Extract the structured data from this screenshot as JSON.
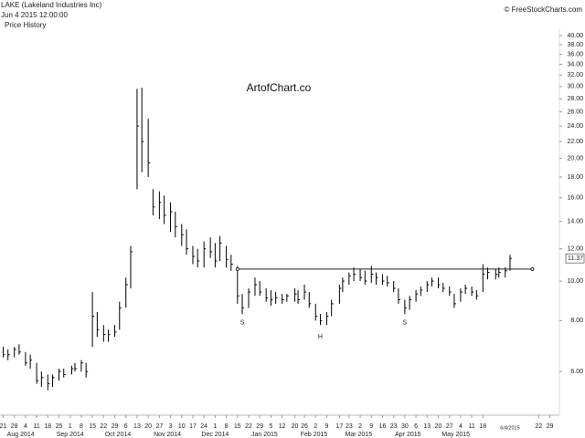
{
  "header": {
    "symbol": "LAKE (Lakeland Industries Inc)",
    "datetime": "Jun 4 2015 12:00:00",
    "panel": "Price History",
    "source": "© FreeStockCharts.com",
    "watermark": "ArtofChart.co"
  },
  "chart_data": {
    "type": "ohlc",
    "log_scale": true,
    "color": "#000000",
    "x": [
      "2014-07-21",
      "2014-07-24",
      "2014-07-28",
      "2014-07-31",
      "2014-08-04",
      "2014-08-07",
      "2014-08-11",
      "2014-08-14",
      "2014-08-18",
      "2014-08-21",
      "2014-08-25",
      "2014-08-28",
      "2014-09-02",
      "2014-09-04",
      "2014-09-08",
      "2014-09-11",
      "2014-09-15",
      "2014-09-18",
      "2014-09-22",
      "2014-09-25",
      "2014-09-29",
      "2014-10-02",
      "2014-10-06",
      "2014-10-09",
      "2014-10-13",
      "2014-10-16",
      "2014-10-20",
      "2014-10-23",
      "2014-10-27",
      "2014-10-30",
      "2014-11-03",
      "2014-11-06",
      "2014-11-10",
      "2014-11-13",
      "2014-11-17",
      "2014-11-20",
      "2014-11-24",
      "2014-11-28",
      "2014-12-01",
      "2014-12-04",
      "2014-12-08",
      "2014-12-11",
      "2014-12-15",
      "2014-12-18",
      "2014-12-22",
      "2014-12-26",
      "2014-12-29",
      "2015-01-02",
      "2015-01-05",
      "2015-01-08",
      "2015-01-12",
      "2015-01-15",
      "2015-01-20",
      "2015-01-22",
      "2015-01-26",
      "2015-01-29",
      "2015-02-02",
      "2015-02-05",
      "2015-02-09",
      "2015-02-12",
      "2015-02-17",
      "2015-02-19",
      "2015-02-23",
      "2015-02-26",
      "2015-03-02",
      "2015-03-05",
      "2015-03-09",
      "2015-03-12",
      "2015-03-16",
      "2015-03-19",
      "2015-03-23",
      "2015-03-26",
      "2015-03-30",
      "2015-04-02",
      "2015-04-06",
      "2015-04-09",
      "2015-04-13",
      "2015-04-16",
      "2015-04-20",
      "2015-04-23",
      "2015-04-27",
      "2015-04-30",
      "2015-05-04",
      "2015-05-07",
      "2015-05-11",
      "2015-05-14",
      "2015-05-18",
      "2015-05-21",
      "2015-05-26",
      "2015-05-28",
      "2015-06-01",
      "2015-06-04"
    ],
    "high": [
      6.9,
      6.8,
      6.9,
      7.0,
      6.7,
      6.6,
      6.3,
      6.0,
      5.9,
      5.9,
      6.1,
      6.1,
      6.2,
      6.3,
      6.4,
      6.3,
      9.4,
      8.4,
      7.8,
      7.6,
      7.8,
      8.9,
      10.2,
      12.2,
      29.6,
      29.8,
      25.0,
      16.8,
      16.6,
      16.2,
      15.6,
      14.8,
      13.8,
      13.4,
      12.2,
      12.0,
      12.5,
      12.8,
      12.4,
      12.9,
      12.2,
      11.6,
      10.9,
      9.3,
      9.6,
      10.2,
      10.0,
      9.6,
      9.5,
      9.4,
      9.3,
      9.3,
      9.6,
      9.5,
      9.8,
      9.4,
      8.8,
      8.3,
      8.4,
      9.0,
      9.8,
      10.2,
      10.5,
      10.8,
      10.7,
      10.6,
      10.9,
      10.5,
      10.4,
      10.3,
      10.0,
      9.6,
      9.0,
      9.2,
      9.5,
      9.7,
      10.0,
      10.2,
      10.2,
      9.9,
      9.7,
      9.3,
      9.6,
      9.8,
      9.7,
      9.5,
      11.0,
      10.8,
      10.7,
      10.8,
      10.8,
      11.6
    ],
    "low": [
      6.5,
      6.4,
      6.5,
      6.6,
      6.2,
      6.1,
      5.6,
      5.5,
      5.4,
      5.5,
      5.7,
      5.8,
      5.9,
      6.0,
      6.0,
      5.8,
      6.9,
      7.3,
      7.1,
      7.1,
      7.3,
      7.6,
      8.6,
      9.6,
      16.8,
      18.5,
      18.0,
      14.5,
      14.2,
      13.8,
      13.2,
      12.8,
      12.2,
      11.6,
      11.0,
      10.8,
      10.8,
      11.4,
      10.8,
      11.2,
      10.8,
      10.6,
      8.8,
      8.3,
      8.6,
      9.2,
      9.2,
      8.9,
      8.7,
      8.8,
      8.8,
      8.9,
      8.9,
      8.8,
      9.0,
      8.6,
      8.0,
      7.8,
      7.8,
      8.2,
      8.8,
      9.4,
      9.8,
      10.0,
      10.0,
      9.8,
      9.9,
      9.8,
      9.8,
      9.7,
      9.4,
      8.8,
      8.3,
      8.5,
      8.9,
      9.2,
      9.4,
      9.7,
      9.6,
      9.4,
      9.2,
      8.6,
      8.9,
      9.3,
      9.2,
      9.0,
      9.4,
      10.1,
      10.1,
      10.2,
      10.2,
      10.6
    ],
    "close": [
      6.6,
      6.6,
      6.8,
      6.7,
      6.3,
      6.4,
      5.7,
      5.8,
      5.6,
      5.8,
      6.0,
      5.9,
      6.1,
      6.1,
      6.3,
      6.0,
      8.2,
      7.6,
      7.4,
      7.4,
      7.5,
      8.6,
      9.8,
      11.8,
      24.0,
      22.0,
      19.5,
      15.2,
      15.6,
      14.5,
      14.8,
      13.6,
      13.0,
      12.0,
      11.5,
      11.2,
      12.0,
      11.8,
      11.2,
      12.4,
      11.3,
      11.0,
      9.2,
      8.6,
      9.4,
      9.8,
      9.4,
      9.1,
      9.0,
      9.1,
      9.0,
      9.2,
      9.3,
      9.0,
      9.4,
      8.8,
      8.2,
      8.0,
      8.2,
      8.8,
      9.6,
      10.0,
      10.3,
      10.4,
      10.2,
      10.0,
      10.4,
      10.2,
      10.0,
      9.9,
      9.6,
      9.0,
      8.6,
      9.0,
      9.3,
      9.5,
      9.8,
      10.0,
      9.8,
      9.6,
      9.4,
      8.8,
      9.4,
      9.6,
      9.4,
      9.2,
      10.4,
      10.5,
      10.4,
      10.5,
      10.6,
      11.37
    ],
    "xlim": [
      "2014-07-19",
      "2015-07-05"
    ],
    "xticks": [
      {
        "value": "2014-07-21",
        "label": "21"
      },
      {
        "value": "2014-07-28",
        "label": "28"
      },
      {
        "value": "2014-08-04",
        "label": "4"
      },
      {
        "value": "2014-08-11",
        "label": "11"
      },
      {
        "value": "2014-08-18",
        "label": "18"
      },
      {
        "value": "2014-08-25",
        "label": "25"
      },
      {
        "value": "2014-09-01",
        "label": "1"
      },
      {
        "value": "2014-09-08",
        "label": "8"
      },
      {
        "value": "2014-09-15",
        "label": "15"
      },
      {
        "value": "2014-09-22",
        "label": "22"
      },
      {
        "value": "2014-09-29",
        "label": "29"
      },
      {
        "value": "2014-10-06",
        "label": "6"
      },
      {
        "value": "2014-10-13",
        "label": "13"
      },
      {
        "value": "2014-10-20",
        "label": "20"
      },
      {
        "value": "2014-10-27",
        "label": "27"
      },
      {
        "value": "2014-11-03",
        "label": "3"
      },
      {
        "value": "2014-11-10",
        "label": "10"
      },
      {
        "value": "2014-11-17",
        "label": "17"
      },
      {
        "value": "2014-11-24",
        "label": "24"
      },
      {
        "value": "2014-12-01",
        "label": "1"
      },
      {
        "value": "2014-12-08",
        "label": "8"
      },
      {
        "value": "2014-12-15",
        "label": "15"
      },
      {
        "value": "2014-12-22",
        "label": "22"
      },
      {
        "value": "2014-12-29",
        "label": "29"
      },
      {
        "value": "2015-01-05",
        "label": "5"
      },
      {
        "value": "2015-01-12",
        "label": "12"
      },
      {
        "value": "2015-01-20",
        "label": "20"
      },
      {
        "value": "2015-01-26",
        "label": "26"
      },
      {
        "value": "2015-02-02",
        "label": "2"
      },
      {
        "value": "2015-02-09",
        "label": "9"
      },
      {
        "value": "2015-02-17",
        "label": "17"
      },
      {
        "value": "2015-02-23",
        "label": "23"
      },
      {
        "value": "2015-03-02",
        "label": "2"
      },
      {
        "value": "2015-03-09",
        "label": "9"
      },
      {
        "value": "2015-03-16",
        "label": "16"
      },
      {
        "value": "2015-03-23",
        "label": "23"
      },
      {
        "value": "2015-03-30",
        "label": "30"
      },
      {
        "value": "2015-04-06",
        "label": "6"
      },
      {
        "value": "2015-04-13",
        "label": "13"
      },
      {
        "value": "2015-04-20",
        "label": "20"
      },
      {
        "value": "2015-04-27",
        "label": "27"
      },
      {
        "value": "2015-05-04",
        "label": "4"
      },
      {
        "value": "2015-05-11",
        "label": "11"
      },
      {
        "value": "2015-05-18",
        "label": "18"
      },
      {
        "value": "2015-06-22",
        "label": "22"
      },
      {
        "value": "2015-06-29",
        "label": "29"
      }
    ],
    "month_labels": [
      {
        "value": "2014-08-01",
        "label": "Aug 2014"
      },
      {
        "value": "2014-09-01",
        "label": "Sep 2014"
      },
      {
        "value": "2014-10-01",
        "label": "Oct 2014"
      },
      {
        "value": "2014-11-01",
        "label": "Nov 2014"
      },
      {
        "value": "2014-12-01",
        "label": "Dec 2014"
      },
      {
        "value": "2015-01-01",
        "label": "Jan 2015"
      },
      {
        "value": "2015-02-01",
        "label": "Feb 2015"
      },
      {
        "value": "2015-03-01",
        "label": "Mar 2015"
      },
      {
        "value": "2015-04-01",
        "label": "Apr 2015"
      },
      {
        "value": "2015-05-01",
        "label": "May 2015"
      }
    ],
    "x_marker": {
      "value": "2015-06-04",
      "label": "6/4/2015"
    },
    "ylim": [
      4.69,
      41.9
    ],
    "yticks": [
      {
        "value": 6,
        "label": "6.00"
      },
      {
        "value": 8,
        "label": "8.00"
      },
      {
        "value": 10,
        "label": "10.00"
      },
      {
        "value": 12,
        "label": "12.00"
      },
      {
        "value": 14,
        "label": "14.00"
      },
      {
        "value": 16,
        "label": "16.00"
      },
      {
        "value": 18,
        "label": "18.00"
      },
      {
        "value": 20,
        "label": "20.00"
      },
      {
        "value": 22,
        "label": "22.00"
      },
      {
        "value": 24,
        "label": "24.00"
      },
      {
        "value": 26,
        "label": "26.00"
      },
      {
        "value": 28,
        "label": "28.00"
      },
      {
        "value": 30,
        "label": "30.00"
      },
      {
        "value": 32,
        "label": "32.00"
      },
      {
        "value": 34,
        "label": "34.00"
      },
      {
        "value": 36,
        "label": "36.00"
      },
      {
        "value": 38,
        "label": "38.00"
      },
      {
        "value": 40,
        "label": "40.00"
      }
    ],
    "neckline": {
      "value": 10.7,
      "from": "2014-12-15",
      "to": "2015-06-18"
    },
    "pattern_labels": [
      {
        "label": "S",
        "x": "2014-12-18",
        "y": 7.9
      },
      {
        "label": "H",
        "x": "2015-02-05",
        "y": 7.3
      },
      {
        "label": "S",
        "x": "2015-03-30",
        "y": 7.9
      }
    ]
  }
}
